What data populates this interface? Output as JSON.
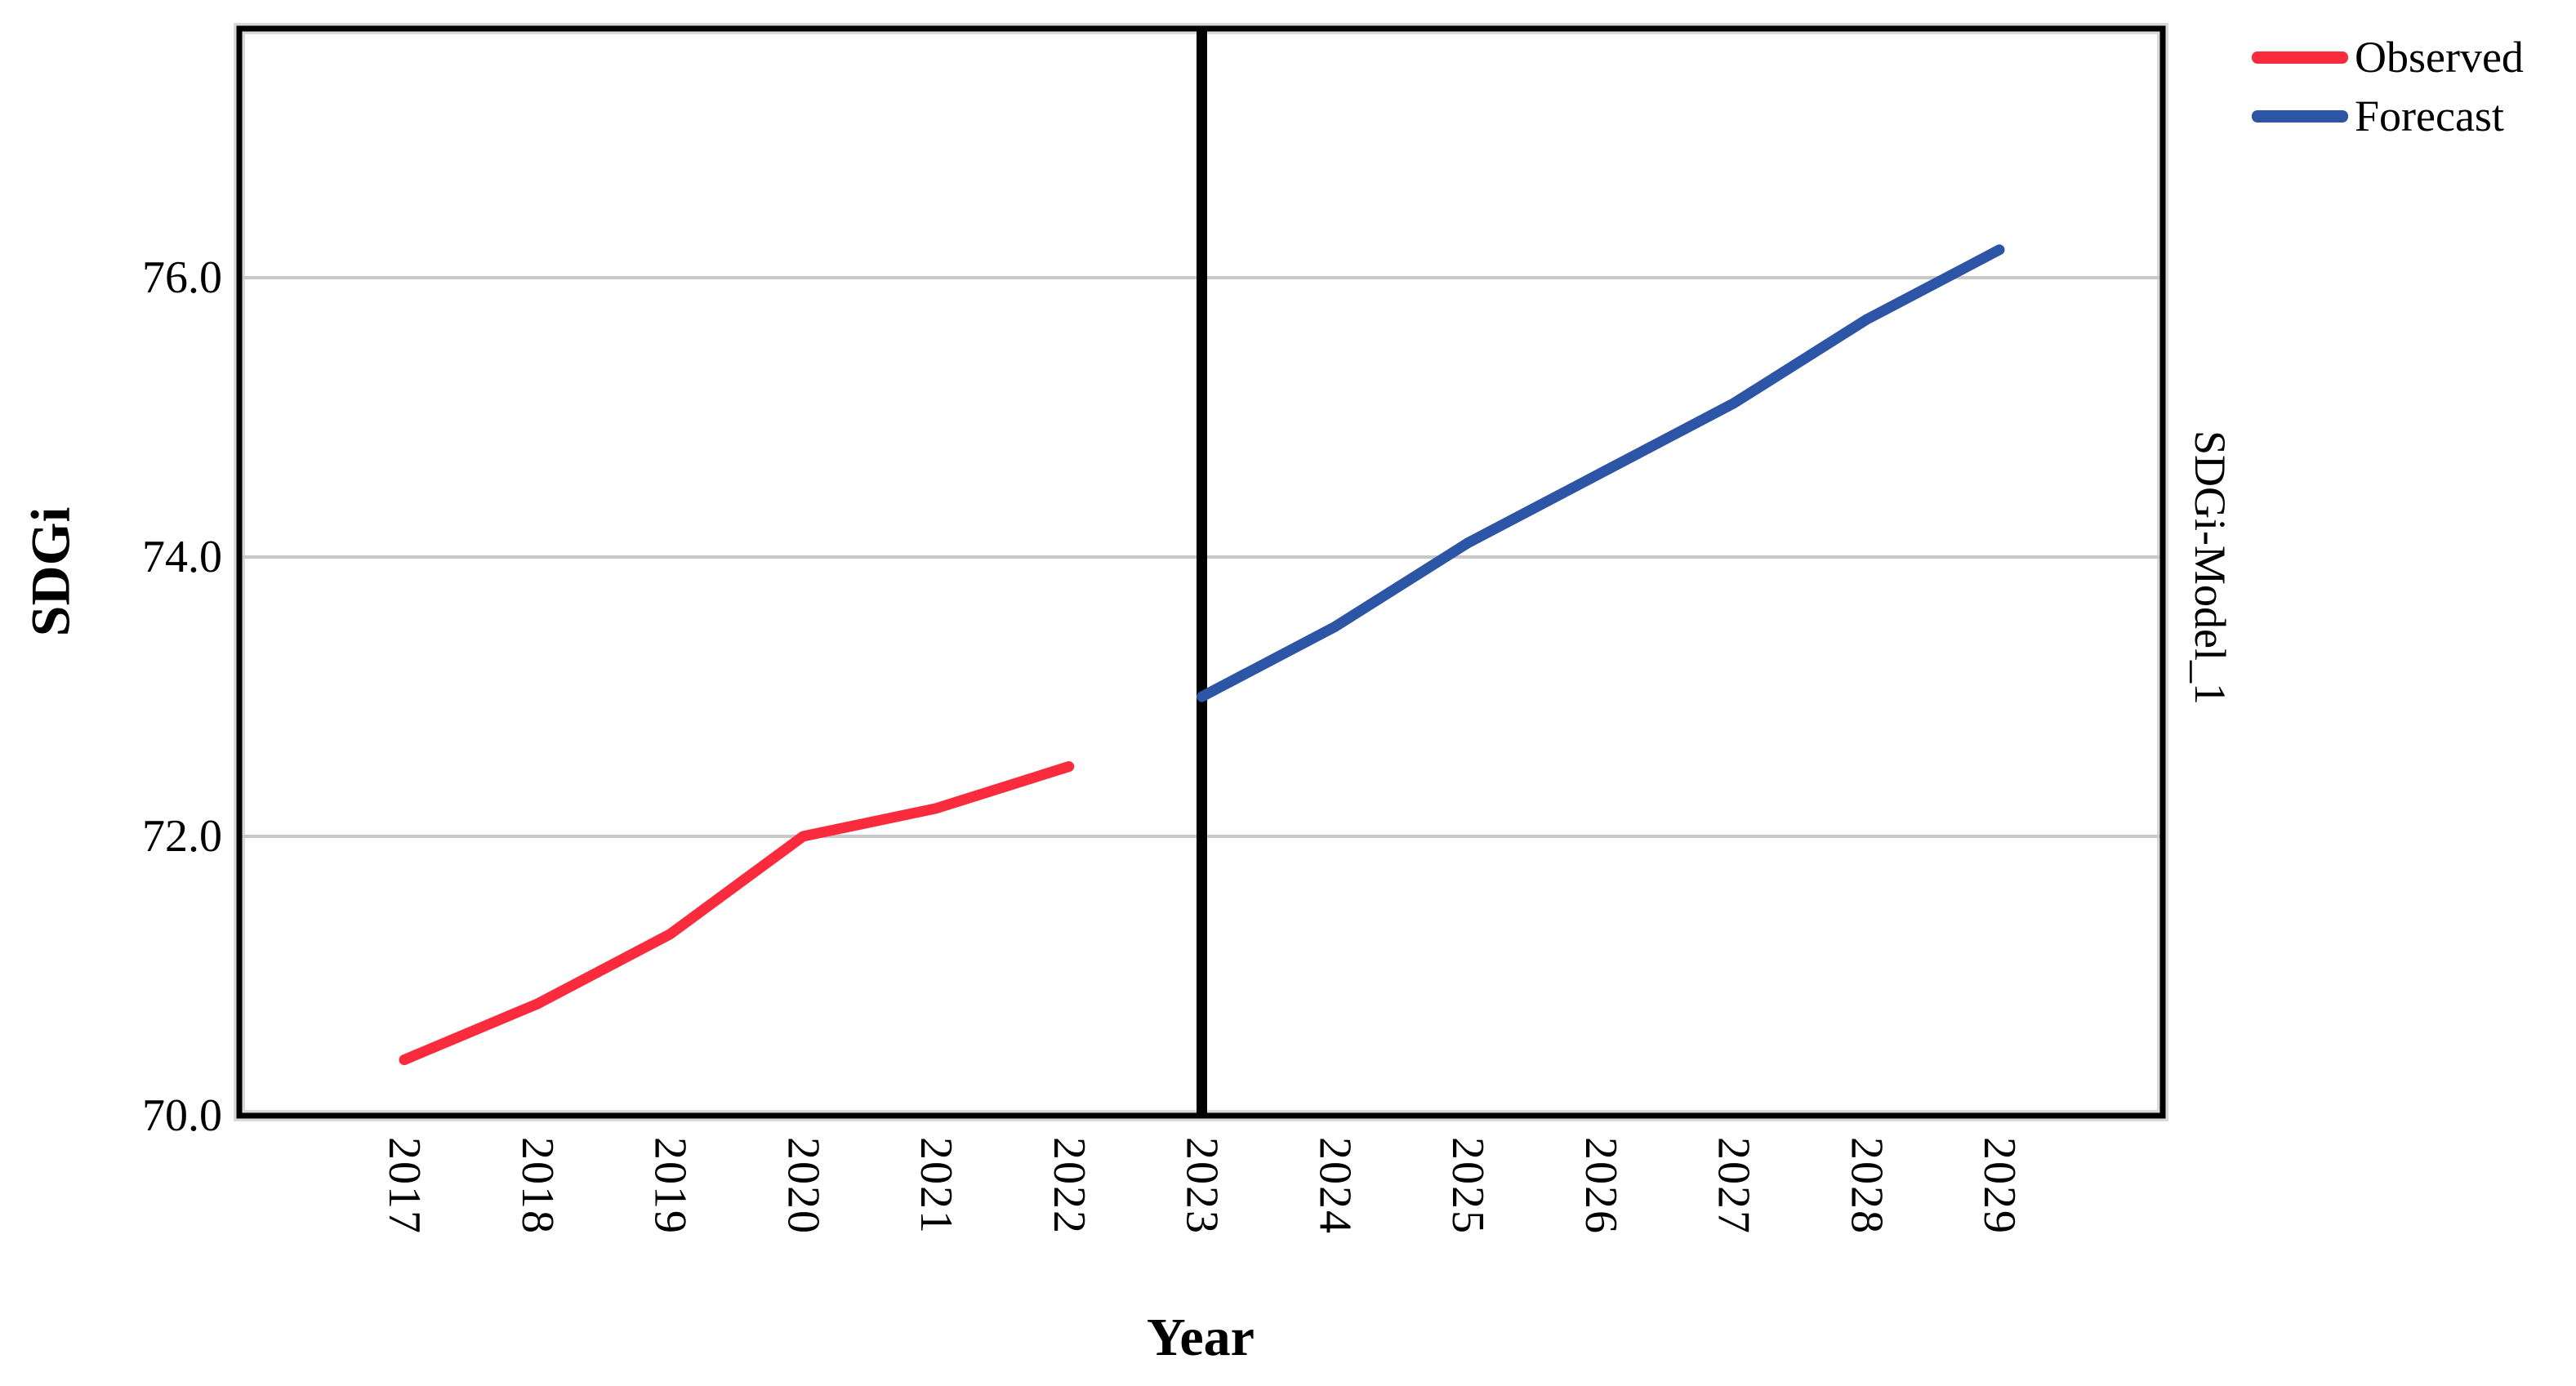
{
  "chart_data": {
    "type": "line",
    "title": "",
    "xlabel": "Year",
    "ylabel": "SDGi",
    "right_axis_label": "SDGi-Model_1",
    "x_ticks": [
      2017,
      2018,
      2019,
      2020,
      2021,
      2022,
      2023,
      2024,
      2025,
      2026,
      2027,
      2028,
      2029
    ],
    "y_ticks": [
      "70.0",
      "72.0",
      "74.0",
      "76.0"
    ],
    "y_gridlines": [
      72.0,
      74.0,
      76.0
    ],
    "ylim": [
      70.0,
      77.8
    ],
    "xlim_years": [
      2017,
      2029
    ],
    "grid": "horizontal-only",
    "separator_year": 2023,
    "legend_position": "top-right",
    "series": [
      {
        "name": "Observed",
        "color": "#fa2b3c",
        "years": [
          2017,
          2018,
          2019,
          2020,
          2021,
          2022
        ],
        "values": [
          70.4,
          70.8,
          71.3,
          72.0,
          72.2,
          72.5
        ]
      },
      {
        "name": "Forecast",
        "color": "#2d55a5",
        "years": [
          2023,
          2024,
          2025,
          2026,
          2027,
          2028,
          2029
        ],
        "values": [
          73.0,
          73.5,
          74.1,
          74.6,
          75.1,
          75.7,
          76.2
        ]
      }
    ],
    "colors": {
      "grid": "#c8c8c8",
      "axis_border": "#000000",
      "border_shadow": "#d9d9d9",
      "separator": "#000000"
    }
  }
}
